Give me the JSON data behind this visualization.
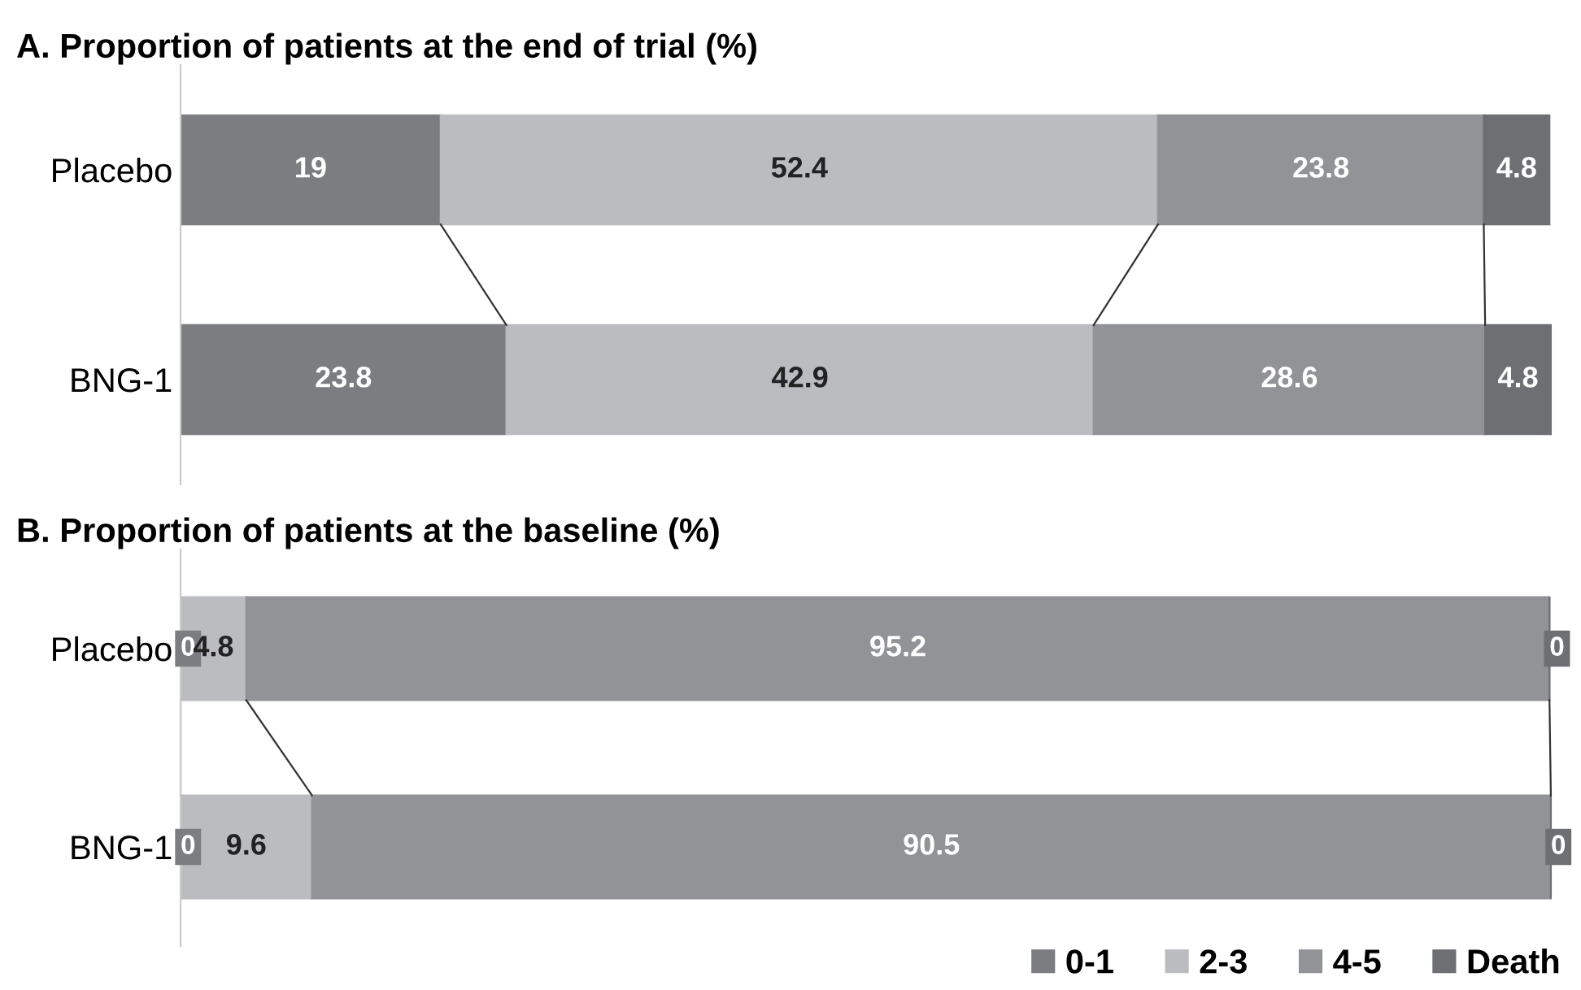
{
  "chart_data": [
    {
      "type": "bar",
      "orientation": "horizontal",
      "stacked": true,
      "title": "A. Proportion of patients at the end of trial (%)",
      "categories": [
        "Placebo",
        "BNG-1"
      ],
      "data_labels": true,
      "tick_labels": "y",
      "series": [
        {
          "color": "#7c7d80",
          "values": [
            19,
            23.8
          ]
        },
        {
          "color": "#bbbcc0",
          "values": [
            52.4,
            42.9
          ]
        },
        {
          "color": "#929396",
          "values": [
            23.8,
            28.6
          ]
        },
        {
          "color": "#6e6f72",
          "values": [
            4.8,
            4.8
          ]
        }
      ]
    },
    {
      "type": "bar",
      "orientation": "horizontal",
      "stacked": true,
      "title": "B. Proportion of patients at the baseline (%)",
      "categories": [
        "Placebo",
        "BNG-1"
      ],
      "data_labels": true,
      "tick_labels": "y",
      "legend": "bottom right",
      "series": [
        {
          "name": "0-1",
          "color": "#7c7d80",
          "values": [
            0,
            0
          ]
        },
        {
          "name": "2-3",
          "color": "#bbbcc0",
          "values": [
            4.8,
            9.6
          ]
        },
        {
          "name": "4-5",
          "color": "#929396",
          "values": [
            95.2,
            90.5
          ]
        },
        {
          "name": "Death",
          "color": "#6e6f72",
          "values": [
            0,
            0
          ]
        }
      ]
    }
  ]
}
